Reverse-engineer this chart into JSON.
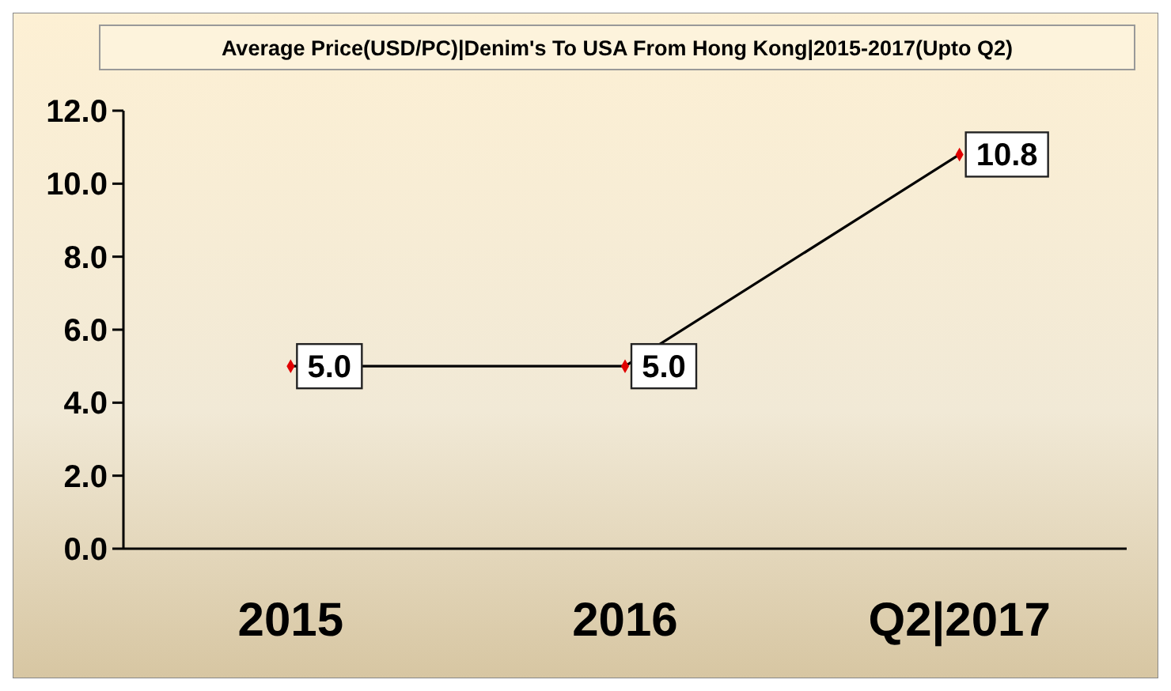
{
  "chart_data": {
    "type": "line",
    "title": "Average Price(USD/PC)|Denim's To USA From Hong Kong|2015-2017(Upto Q2)",
    "categories": [
      "2015",
      "2016",
      "Q2|2017"
    ],
    "series": [
      {
        "color": "#000000",
        "values": [
          5.0,
          5.0,
          10.8
        ],
        "value_labels": [
          "5.0",
          "5.0",
          "10.8"
        ]
      }
    ],
    "ylim": [
      0,
      12
    ],
    "yticks": [
      {
        "value": 0,
        "label": "0.0"
      },
      {
        "value": 2,
        "label": "2.0"
      },
      {
        "value": 4,
        "label": "4.0"
      },
      {
        "value": 6,
        "label": "6.0"
      },
      {
        "value": 8,
        "label": "8.0"
      },
      {
        "value": 10,
        "label": "10.0"
      },
      {
        "value": 12,
        "label": "12.0"
      }
    ],
    "grid": false,
    "marker": "diamond",
    "line_style": "solid"
  }
}
